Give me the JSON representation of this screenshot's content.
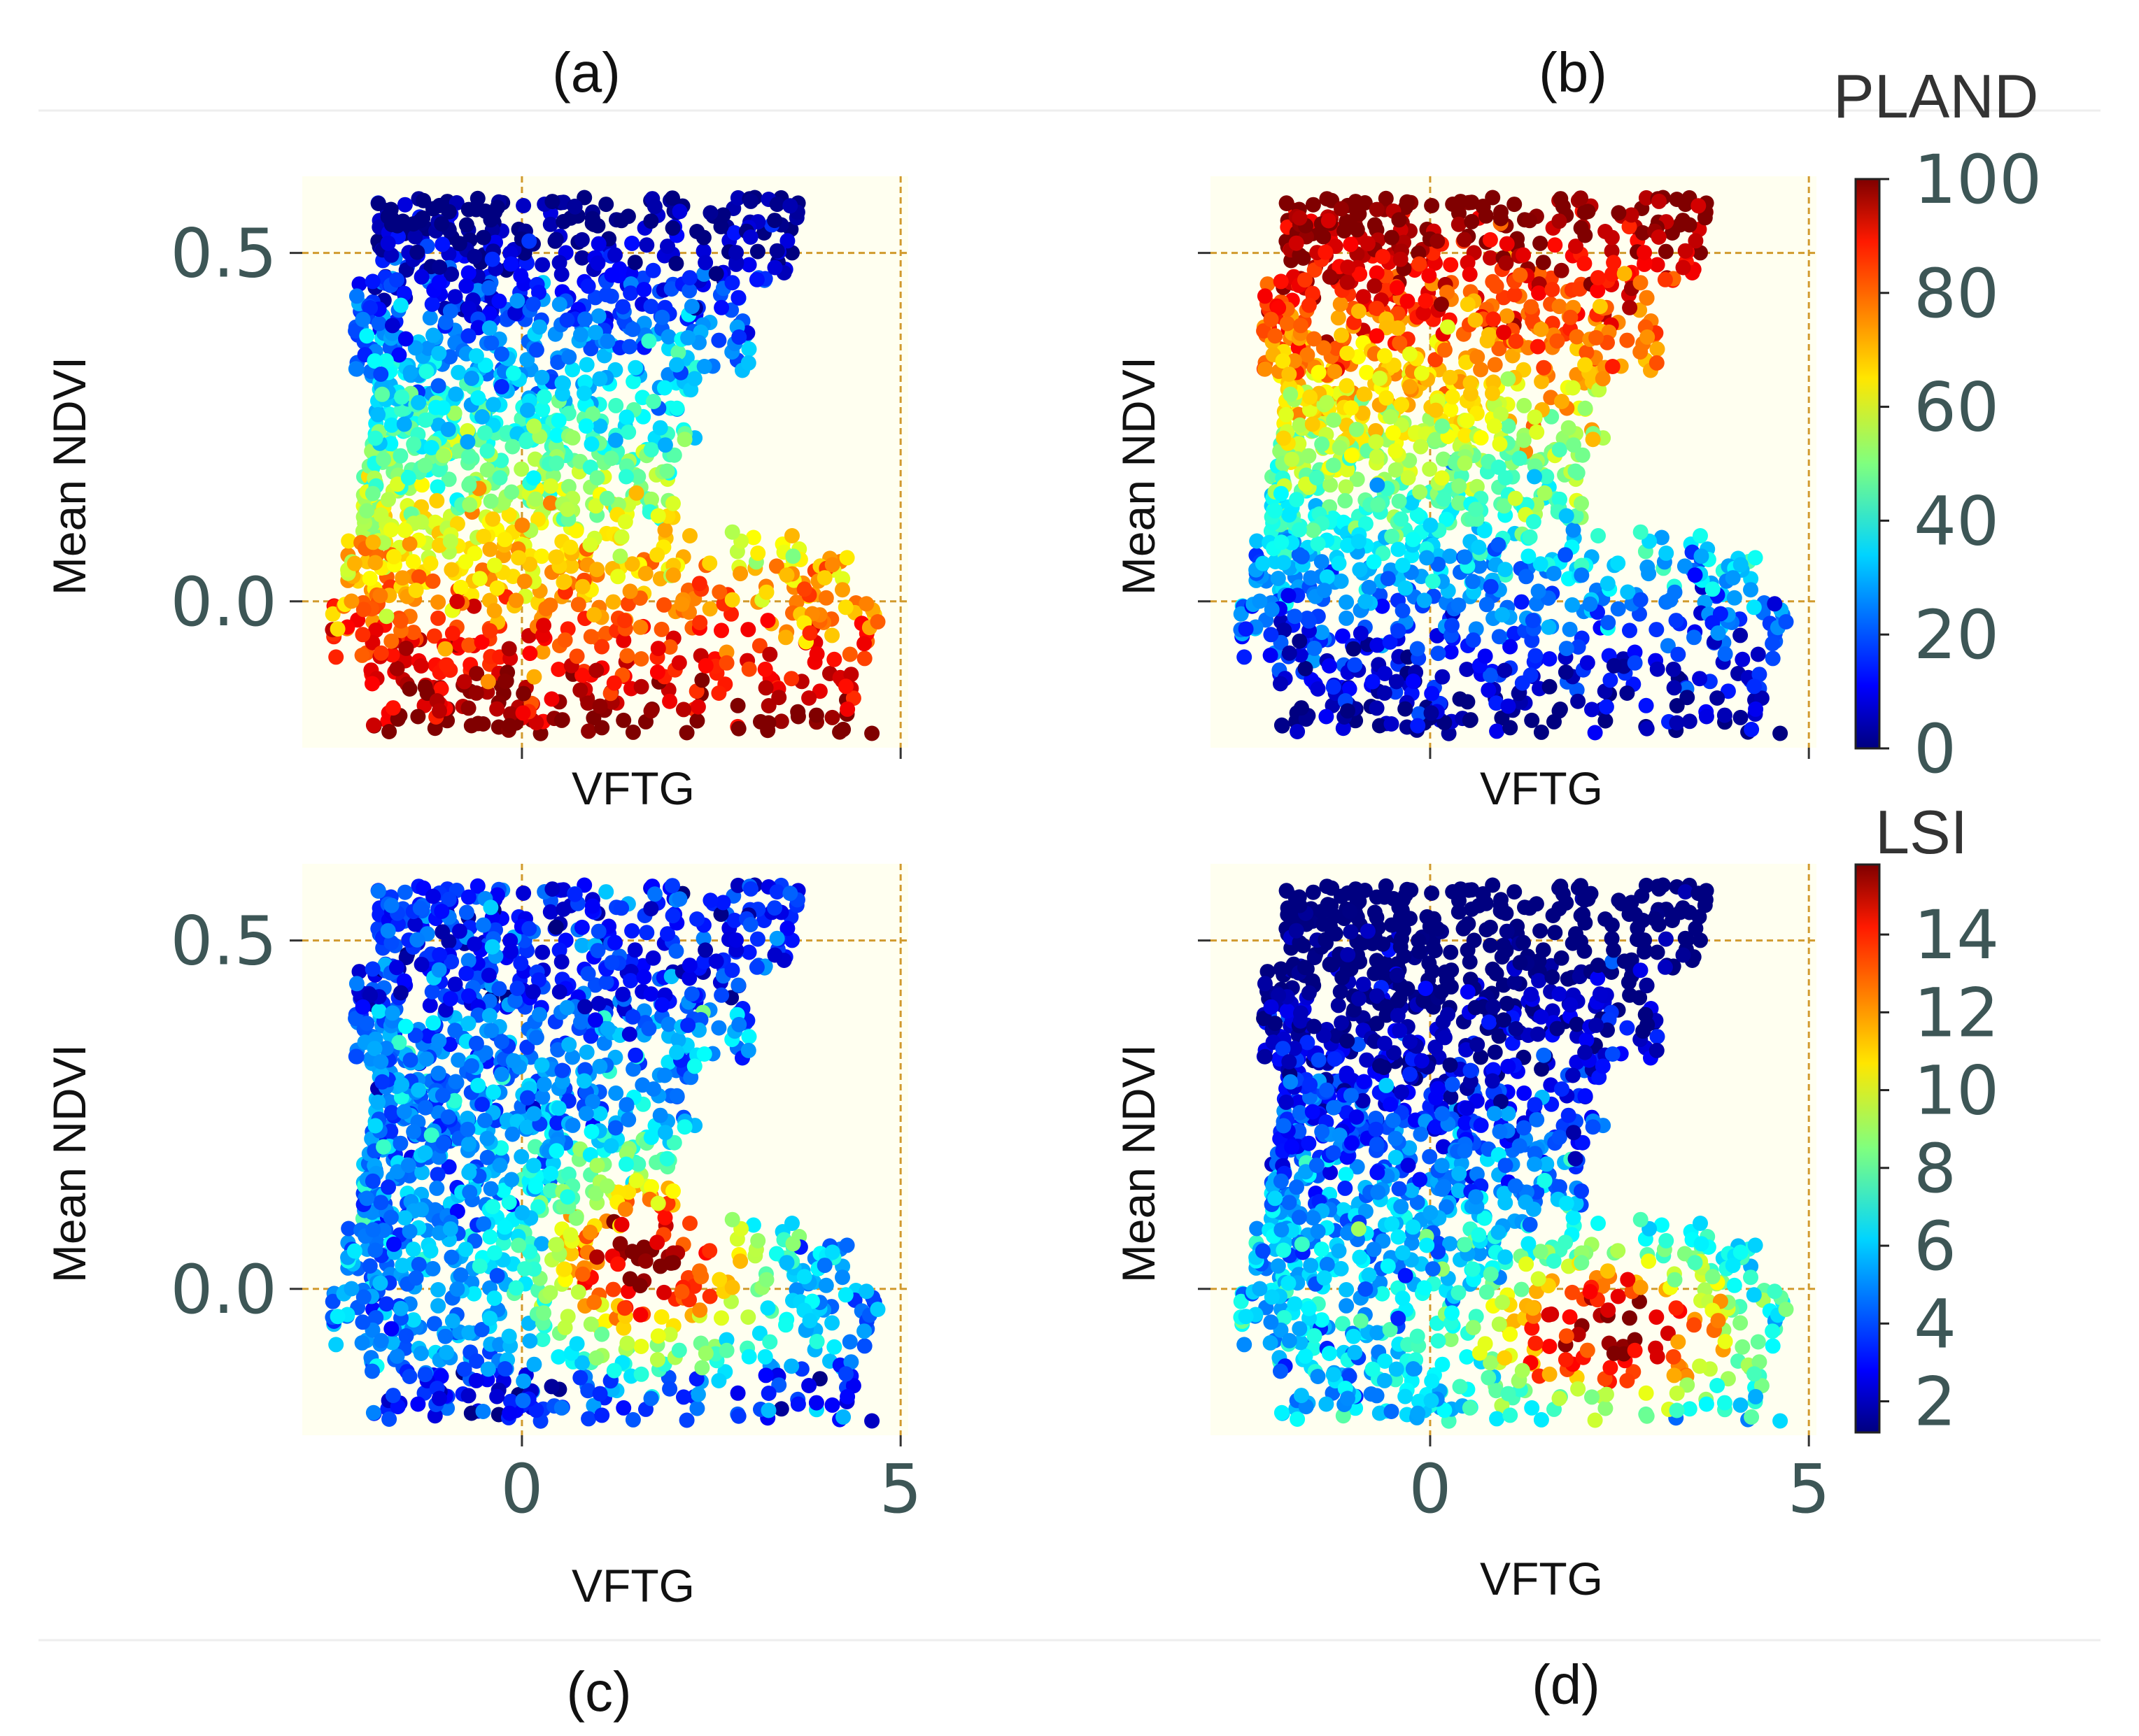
{
  "figure": {
    "top_rule_color": "#eeeeee",
    "plot_background": "#fffff0",
    "grid_color": "#d19a2e"
  },
  "colorbars": [
    {
      "title": "PLAND",
      "ticks": [
        "100",
        "80",
        "60",
        "40",
        "20",
        "0"
      ],
      "range": [
        0,
        100
      ]
    },
    {
      "title": "LSI",
      "ticks": [
        "14",
        "12",
        "10",
        "8",
        "6",
        "4",
        "2"
      ],
      "range": [
        1.2,
        15.8
      ]
    }
  ],
  "chart_data": [
    {
      "id": "a",
      "type": "scatter",
      "panel_label": "(a)",
      "xlabel": "VFTG",
      "ylabel": "Mean NDVI",
      "xlim": [
        -2.9,
        5.1
      ],
      "ylim": [
        -0.21,
        0.61
      ],
      "xticks": [
        "0",
        "5"
      ],
      "yticks": [
        "0.5",
        "0.0"
      ],
      "color_variable": "PLAND",
      "show_x_ticklabels": false,
      "show_y_ticklabels": true,
      "point_count": 1600,
      "description": "Hexbin of cells colored by PLAND; high NDVI bins are low PLAND (blue), low NDVI bins are high PLAND (red)"
    },
    {
      "id": "b",
      "type": "scatter",
      "panel_label": "(b)",
      "xlabel": "VFTG",
      "ylabel": "Mean NDVI",
      "xlim": [
        -2.9,
        5.1
      ],
      "ylim": [
        -0.21,
        0.61
      ],
      "xticks": [
        "0",
        "5"
      ],
      "yticks": [
        "0.5",
        "0.0"
      ],
      "color_variable": "PLAND",
      "show_x_ticklabels": false,
      "show_y_ticklabels": false,
      "point_count": 1600,
      "description": "Same bins colored by PLAND; high NDVI bins are high PLAND (red), low NDVI bins are low PLAND (blue)"
    },
    {
      "id": "c",
      "type": "scatter",
      "panel_label": "(c)",
      "xlabel": "VFTG",
      "ylabel": "Mean NDVI",
      "xlim": [
        -2.9,
        5.1
      ],
      "ylim": [
        -0.21,
        0.61
      ],
      "xticks": [
        "0",
        "5"
      ],
      "yticks": [
        "0.5",
        "0.0"
      ],
      "color_variable": "LSI",
      "show_x_ticklabels": true,
      "show_y_ticklabels": true,
      "point_count": 1600,
      "description": "Bins colored by LSI; peak LSI (~14-15) near VFTG 1-3, NDVI ~0.0-0.1"
    },
    {
      "id": "d",
      "type": "scatter",
      "panel_label": "(d)",
      "xlabel": "VFTG",
      "ylabel": "Mean NDVI",
      "xlim": [
        -2.9,
        5.1
      ],
      "ylim": [
        -0.21,
        0.61
      ],
      "xticks": [
        "0",
        "5"
      ],
      "yticks": [
        "0.5",
        "0.0"
      ],
      "color_variable": "LSI",
      "show_x_ticklabels": true,
      "show_y_ticklabels": false,
      "point_count": 1600,
      "description": "Bins colored by LSI; low LSI at high NDVI, highest LSI at VFTG ~2-3.5 and NDVI ~-0.05"
    }
  ]
}
